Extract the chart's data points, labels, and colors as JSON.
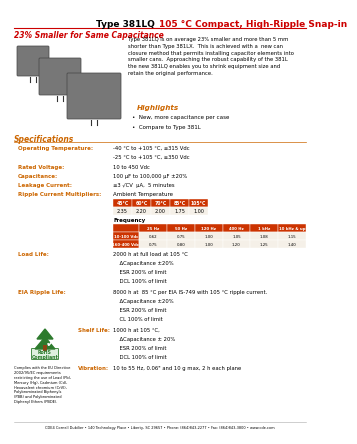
{
  "title_black": "Type 381LQ ",
  "title_red": "105 °C Compact, High-Ripple Snap-in",
  "subtitle": "23% Smaller for Same Capacitance",
  "body_text": "Type 381LQ is on average 23% smaller and more than 5 mm\nshorter than Type 381LX.  This is achieved with a  new can\nclosure method that permits installing capacitor elements into\nsmaller cans.  Approaching the robust capability of the 381L\nthe new 381LQ enables you to shrink equipment size and\nretain the original performance.",
  "highlights_title": "Highlights",
  "highlights": [
    "New, more capacitance per case",
    "Compare to Type 381L"
  ],
  "spec_title": "Specifications",
  "spec_items": [
    [
      "Operating Temperature:",
      "-40 °C to +105 °C, ≤315 Vdc\n-25 °C to +105 °C, ≥350 Vdc"
    ],
    [
      "Rated Voltage:",
      "10 to 450 Vdc"
    ],
    [
      "Capacitance:",
      "100 µF to 100,000 µF ±20%"
    ],
    [
      "Leakage Current:",
      "≤3 √CV  µA,  5 minutes"
    ],
    [
      "Ripple Current Multipliers:",
      "Ambient Temperature"
    ]
  ],
  "ripple_temp_headers": [
    "45°C",
    "60°C",
    "70°C",
    "85°C",
    "105°C"
  ],
  "ripple_temp_values": [
    "2.35",
    "2.20",
    "2.00",
    "1.75",
    "1.00"
  ],
  "freq_header": "Frequency",
  "freq_col_headers": [
    "25 Hz",
    "50 Hz",
    "120 Hz",
    "400 Hz",
    "1 kHz",
    "10 kHz & up"
  ],
  "freq_row1_label": "10-100 Vdc",
  "freq_row1": [
    "0.62",
    "0.75",
    "1.00",
    "1.05",
    "1.08",
    "1.15"
  ],
  "freq_row2_label": "160-400 Vdc",
  "freq_row2": [
    "0.75",
    "0.80",
    "1.00",
    "1.20",
    "1.25",
    "1.40"
  ],
  "load_life_label": "Load Life:",
  "load_life_text": "2000 h at full load at 105 °C\n    ΔCapacitance ±20%\n    ESR 200% of limit\n    DCL 100% of limit",
  "eia_ripple_label": "EIA Ripple Life:",
  "eia_ripple_text": "8000 h at  85 °C per EIA IS-749 with 105 °C ripple current.\n    ΔCapacitance ±20%\n    ESR 200% of limit\n    CL 100% of limit",
  "shelf_life_label": "Shelf Life:",
  "shelf_life_text": "1000 h at 105 °C,\n    ΔCapacitance ± 20%\n    ESR 200% of limit\n    DCL 100% of limit",
  "vibration_label": "Vibration:",
  "vibration_text": "10 to 55 Hz, 0.06\" and 10 g max, 2 h each plane",
  "footer_text": "CDE4 Cornell Dubilier • 140 Technology Place • Liberty, SC 29657 • Phone: (864)843-2277 • Fax: (864)843-3800 • www.cde.com",
  "rohs_label": "RoHS\nCompliant",
  "rohs_text": "Complies with the EU Directive\n2002/95/EC requirements\nrestricting the use of Lead (Pb),\nMercury (Hg), Cadmium (Cd),\nHexavalent chromium (CrVI),\nPolybrominated Biphenyls\n(PBB) and Polybrominated\nDiphenyl Ethers (PBDE).",
  "color_red": "#cc0000",
  "color_black": "#000000",
  "color_orange": "#cc6600",
  "color_bg": "#ffffff",
  "color_table_header": "#cc3300",
  "color_table_bg": "#f5f0e8"
}
